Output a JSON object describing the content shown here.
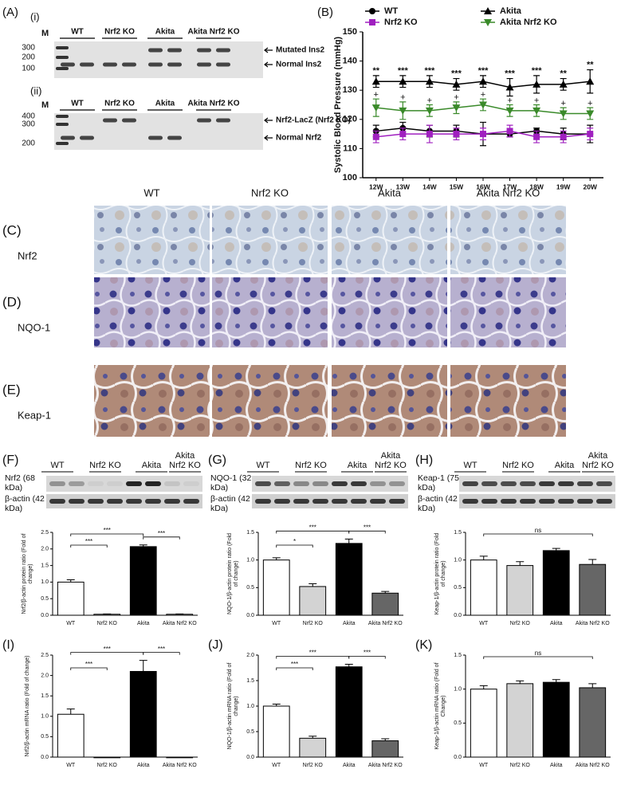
{
  "figure": {
    "panel_A": {
      "label": "(A)",
      "sub1": "(i)",
      "sub2": "(ii)",
      "marker": "M",
      "lanes": [
        "WT",
        "Nrf2 KO",
        "Akita",
        "Akita Nrf2 KO"
      ],
      "gel1_sizes": [
        300,
        200,
        100
      ],
      "gel1_bands": [
        "Mutated Ins2",
        "Normal Ins2"
      ],
      "gel2_sizes": [
        400,
        300,
        200
      ],
      "gel2_bands": [
        "Nrf2-LacZ (Nrf2 KO)",
        "Normal Nrf2"
      ]
    },
    "panel_B_label": "(B)",
    "ihc": {
      "columns": [
        "WT",
        "Nrf2 KO",
        "Akita",
        "Akita Nrf2 KO"
      ],
      "rows": [
        {
          "label": "(C)",
          "name": "Nrf2"
        },
        {
          "label": "(D)",
          "name": "NQO-1"
        },
        {
          "label": "(E)",
          "name": "Keap-1"
        }
      ]
    },
    "blots": [
      {
        "label": "(F)",
        "lanes": [
          "WT",
          "Nrf2 KO",
          "Akita",
          "Akita Nrf2 KO"
        ],
        "target": "Nrf2 (68 kDa)",
        "control": "β-actin (42 kDa)"
      },
      {
        "label": "(G)",
        "lanes": [
          "WT",
          "Nrf2 KO",
          "Akita",
          "Akita Nrf2 KO"
        ],
        "target": "NQO-1 (32 kDa)",
        "control": "β-actin (42 kDa)"
      },
      {
        "label": "(H)",
        "lanes": [
          "WT",
          "Nrf2 KO",
          "Akita",
          "Akita Nrf2 KO"
        ],
        "target": "Keap-1 (75 kDa)",
        "control": "β-actin (42 kDa)"
      }
    ],
    "mrna_labels": [
      "(I)",
      "(J)",
      "(K)"
    ]
  },
  "chart_data": [
    {
      "type": "line",
      "ylabel": "Systolic Blood Pressure (mmHg)",
      "categories": [
        "12W",
        "13W",
        "14W",
        "15W",
        "16W",
        "17W",
        "18W",
        "19W",
        "20W"
      ],
      "ylim": [
        100,
        150
      ],
      "yticks": [
        100,
        110,
        120,
        130,
        140,
        150
      ],
      "series": [
        {
          "name": "WT",
          "color": "#000000",
          "marker": "circle",
          "values": [
            116,
            117,
            116,
            116,
            115,
            115,
            116,
            115,
            115
          ],
          "errors": [
            2,
            2,
            2,
            2,
            4,
            1,
            1,
            2,
            3
          ]
        },
        {
          "name": "Nrf2 KO",
          "color": "#a020c0",
          "marker": "square",
          "values": [
            114,
            115,
            115,
            115,
            115,
            116,
            114,
            114,
            115
          ],
          "errors": [
            2,
            2,
            3,
            2,
            2,
            2,
            2,
            2,
            2
          ]
        },
        {
          "name": "Akita",
          "color": "#000000",
          "marker": "triangle",
          "values": [
            133,
            133,
            133,
            132,
            133,
            131,
            132,
            132,
            133
          ],
          "errors": [
            2,
            2,
            2,
            2,
            2,
            3,
            3,
            2,
            4
          ]
        },
        {
          "name": "Akita Nrf2 KO",
          "color": "#3a8a2a",
          "marker": "triangle-down",
          "values": [
            124,
            123,
            123,
            124,
            125,
            123,
            123,
            122,
            122
          ],
          "errors": [
            3,
            3,
            2,
            2,
            2,
            2,
            2,
            2,
            2
          ]
        }
      ],
      "sig_vs_wt": [
        "**",
        "***",
        "***",
        "***",
        "***",
        "***",
        "***",
        "**",
        "**"
      ],
      "sig_vs_akita": [
        "+",
        "+",
        "+",
        "+",
        "+",
        "+",
        "+",
        "+",
        "+"
      ]
    },
    {
      "type": "bar",
      "ylabel": "Nrf2/β-actin protein ratio (Fold of change)",
      "categories": [
        "WT",
        "Nrf2 KO",
        "Akita",
        "Akita Nrf2 KO"
      ],
      "values": [
        1.0,
        0.03,
        2.07,
        0.03
      ],
      "errors": [
        0.07,
        0.01,
        0.05,
        0.01
      ],
      "colors": [
        "#ffffff",
        "#ffffff",
        "#000000",
        "#ffffff"
      ],
      "ylim": [
        0,
        2.5
      ],
      "yticks": [
        {
          "value": 0,
          "label": "0.0"
        },
        0.5,
        {
          "value": 1,
          "label": "1.0"
        },
        1.5,
        {
          "value": 2,
          "label": "2.0"
        },
        2.5
      ],
      "significance": [
        {
          "pair": [
            "WT",
            "Akita"
          ],
          "label": "***"
        },
        {
          "pair": [
            "WT",
            "Nrf2 KO"
          ],
          "label": "***"
        },
        {
          "pair": [
            "Akita",
            "Akita Nrf2 KO"
          ],
          "label": "***"
        }
      ]
    },
    {
      "type": "bar",
      "ylabel": "NQO-1/β-actin protein ratio (Fold of change)",
      "categories": [
        "WT",
        "Nrf2 KO",
        "Akita",
        "Akita Nrf2 KO"
      ],
      "values": [
        1.0,
        0.52,
        1.3,
        0.4
      ],
      "errors": [
        0.04,
        0.05,
        0.08,
        0.03
      ],
      "colors": [
        "#ffffff",
        "#d3d3d3",
        "#000000",
        "#666666"
      ],
      "ylim": [
        0,
        1.5
      ],
      "yticks": [
        {
          "value": 0,
          "label": "0.0"
        },
        0.5,
        {
          "value": 1,
          "label": "1.0"
        },
        1.5
      ],
      "significance": [
        {
          "pair": [
            "WT",
            "Akita"
          ],
          "label": "***"
        },
        {
          "pair": [
            "WT",
            "Nrf2 KO"
          ],
          "label": "*"
        },
        {
          "pair": [
            "Akita",
            "Akita Nrf2 KO"
          ],
          "label": "***"
        }
      ]
    },
    {
      "type": "bar",
      "ylabel": "Keap-1/β-actin protein ratio (Fold of change)",
      "categories": [
        "WT",
        "Nrf2 KO",
        "Akita",
        "Akita Nrf2 KO"
      ],
      "values": [
        1.0,
        0.9,
        1.17,
        0.92
      ],
      "errors": [
        0.07,
        0.07,
        0.04,
        0.09
      ],
      "colors": [
        "#ffffff",
        "#d3d3d3",
        "#000000",
        "#666666"
      ],
      "ylim": [
        0,
        1.5
      ],
      "yticks": [
        {
          "value": 0,
          "label": "0.0"
        },
        0.5,
        {
          "value": 1,
          "label": "1.0"
        },
        1.5
      ],
      "significance": [
        {
          "pair": [
            "WT",
            "Akita Nrf2 KO"
          ],
          "label": "ns"
        }
      ]
    },
    {
      "type": "bar",
      "ylabel": "Nrf2/β-actin mRNA ratio (Fold of change)",
      "categories": [
        "WT",
        "Nrf2 KO",
        "Akita",
        "Akita Nrf2 KO"
      ],
      "values": [
        1.05,
        0.0,
        2.1,
        0.0
      ],
      "errors": [
        0.13,
        0.0,
        0.27,
        0.0
      ],
      "colors": [
        "#ffffff",
        "#ffffff",
        "#000000",
        "#ffffff"
      ],
      "ylim": [
        0,
        2.5
      ],
      "yticks": [
        {
          "value": 0,
          "label": "0.0"
        },
        0.5,
        {
          "value": 1,
          "label": "1.0"
        },
        1.5,
        {
          "value": 2,
          "label": "2.0"
        },
        2.5
      ],
      "significance": [
        {
          "pair": [
            "WT",
            "Akita"
          ],
          "label": "***"
        },
        {
          "pair": [
            "WT",
            "Nrf2 KO"
          ],
          "label": "***"
        },
        {
          "pair": [
            "Akita",
            "Akita Nrf2 KO"
          ],
          "label": "***"
        }
      ]
    },
    {
      "type": "bar",
      "ylabel": "NQO-1/β-actin mRNA ratio (Fold of change)",
      "categories": [
        "WT",
        "Nrf2 KO",
        "Akita",
        "Akita Nrf2 KO"
      ],
      "values": [
        1.0,
        0.37,
        1.77,
        0.32
      ],
      "errors": [
        0.04,
        0.04,
        0.05,
        0.04
      ],
      "colors": [
        "#ffffff",
        "#d3d3d3",
        "#000000",
        "#666666"
      ],
      "ylim": [
        0,
        2
      ],
      "yticks": [
        {
          "value": 0,
          "label": "0.0"
        },
        0.5,
        {
          "value": 1,
          "label": "1.0"
        },
        1.5,
        {
          "value": 2,
          "label": "2.0"
        }
      ],
      "significance": [
        {
          "pair": [
            "WT",
            "Akita"
          ],
          "label": "***"
        },
        {
          "pair": [
            "WT",
            "Nrf2 KO"
          ],
          "label": "***"
        },
        {
          "pair": [
            "Akita",
            "Akita Nrf2 KO"
          ],
          "label": "***"
        }
      ]
    },
    {
      "type": "bar",
      "ylabel": "Keap-1/β-actin mRNA ratio (Fold of Change)",
      "categories": [
        "WT",
        "Nrf2 KO",
        "Akita",
        "Akita Nrf2 KO"
      ],
      "values": [
        1.0,
        1.08,
        1.1,
        1.02
      ],
      "errors": [
        0.05,
        0.04,
        0.04,
        0.06
      ],
      "colors": [
        "#ffffff",
        "#d3d3d3",
        "#000000",
        "#666666"
      ],
      "ylim": [
        0,
        1.5
      ],
      "yticks": [
        {
          "value": 0,
          "label": "0.0"
        },
        0.5,
        {
          "value": 1,
          "label": "1.0"
        },
        1.5
      ],
      "significance": [
        {
          "pair": [
            "WT",
            "Akita Nrf2 KO"
          ],
          "label": "ns"
        }
      ]
    }
  ]
}
